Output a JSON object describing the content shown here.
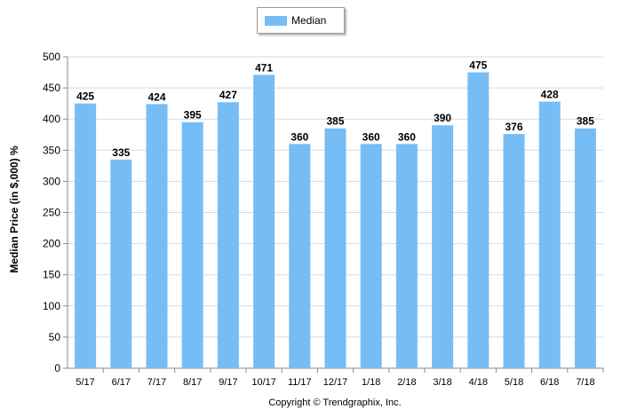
{
  "chart_data": {
    "type": "bar",
    "categories": [
      "5/17",
      "6/17",
      "7/17",
      "8/17",
      "9/17",
      "10/17",
      "11/17",
      "12/17",
      "1/18",
      "2/18",
      "3/18",
      "4/18",
      "5/18",
      "6/18",
      "7/18"
    ],
    "series": [
      {
        "name": "Median",
        "values": [
          425,
          335,
          424,
          395,
          427,
          471,
          360,
          385,
          360,
          360,
          390,
          475,
          376,
          428,
          385
        ],
        "color": "#77bdf5"
      }
    ],
    "title": "",
    "xlabel": "",
    "ylabel": "Median Price (in $,000) %",
    "ylim": [
      0,
      500
    ],
    "yticks": [
      0,
      50,
      100,
      150,
      200,
      250,
      300,
      350,
      400,
      450,
      500
    ],
    "grid": true,
    "legend": "top-center",
    "data_labels": true
  },
  "legend": {
    "label": "Median",
    "color": "#77bdf5"
  },
  "footer": {
    "text": "Copyright © Trendgraphix, Inc."
  },
  "colors": {
    "bar": "#77bdf5",
    "grid": "#d9d9d9",
    "axis": "#888888"
  }
}
